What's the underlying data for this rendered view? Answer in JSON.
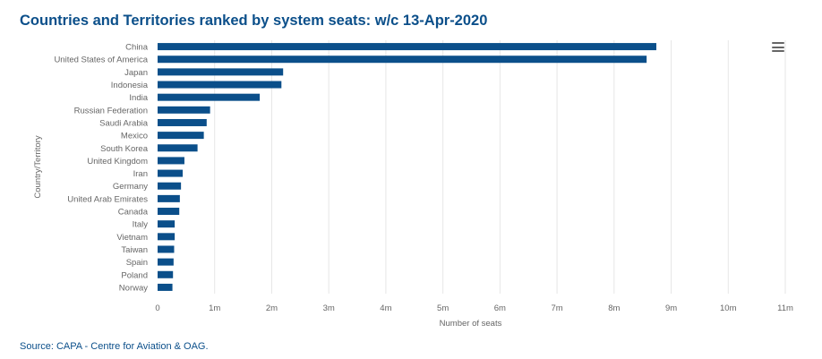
{
  "title": "Countries and Territories ranked by system seats: w/c 13-Apr-2020",
  "source": "Source: CAPA - Centre for Aviation & OAG.",
  "menu_icon": "hamburger-menu-icon",
  "chart_data": {
    "type": "bar",
    "orientation": "horizontal",
    "xlabel": "Number of seats",
    "ylabel": "Country/Territory",
    "xlim": [
      0,
      11000000
    ],
    "xticks": [
      0,
      1000000,
      2000000,
      3000000,
      4000000,
      5000000,
      6000000,
      7000000,
      8000000,
      9000000,
      10000000,
      11000000
    ],
    "xtick_labels": [
      "0",
      "1m",
      "2m",
      "3m",
      "4m",
      "5m",
      "6m",
      "7m",
      "8m",
      "9m",
      "10m",
      "11m"
    ],
    "grid": "vertical",
    "bar_color": "#0b4f8a",
    "categories": [
      "China",
      "United States of America",
      "Japan",
      "Indonesia",
      "India",
      "Russian Federation",
      "Saudi Arabia",
      "Mexico",
      "South Korea",
      "United Kingdom",
      "Iran",
      "Germany",
      "United Arab Emirates",
      "Canada",
      "Italy",
      "Vietnam",
      "Taiwan",
      "Spain",
      "Poland",
      "Norway"
    ],
    "values": [
      8740000,
      8570000,
      2200000,
      2170000,
      1790000,
      920000,
      860000,
      810000,
      700000,
      470000,
      440000,
      410000,
      390000,
      380000,
      300000,
      300000,
      290000,
      280000,
      270000,
      260000
    ]
  }
}
